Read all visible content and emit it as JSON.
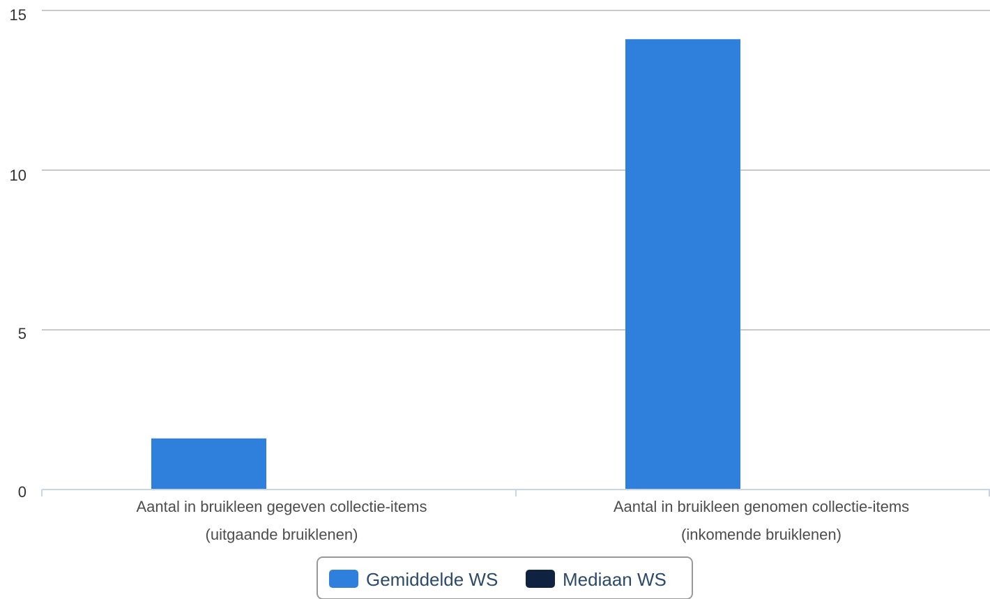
{
  "chart_data": {
    "type": "bar",
    "categories": [
      [
        "Aantal in bruikleen gegeven collectie-items",
        "(uitgaande bruiklenen)"
      ],
      [
        "Aantal in bruikleen genomen collectie-items",
        "(inkomende bruiklenen)"
      ]
    ],
    "series": [
      {
        "name": "Gemiddelde WS",
        "values": [
          1.6,
          14.1
        ],
        "color": "#2f80dc"
      },
      {
        "name": "Mediaan WS",
        "values": [
          0,
          0
        ],
        "color": "#0f2340"
      }
    ],
    "yticks": [
      "0",
      "5",
      "10",
      "15"
    ],
    "ylim": [
      0,
      15
    ],
    "grid": true,
    "legend_position": "bottom-center",
    "colors": {
      "grid": "#c8c8c8",
      "axis": "#c6d6e8",
      "legend_border": "#999999"
    }
  }
}
